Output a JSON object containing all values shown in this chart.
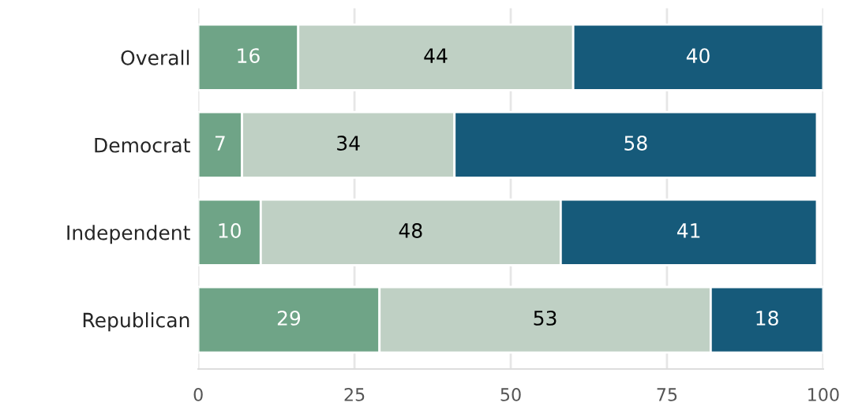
{
  "chart_data": {
    "type": "bar",
    "orientation": "horizontal",
    "stacked": true,
    "categories": [
      "Overall",
      "Democrat",
      "Independent",
      "Republican"
    ],
    "series": [
      {
        "color": "#6fa487",
        "values": [
          16,
          7,
          10,
          29
        ]
      },
      {
        "color": "#bfd0c4",
        "values": [
          44,
          34,
          48,
          53
        ]
      },
      {
        "color": "#165a7a",
        "values": [
          40,
          58,
          41,
          18
        ]
      }
    ],
    "xlim": [
      0,
      100
    ],
    "xticks": [
      0,
      25,
      50,
      75,
      100
    ],
    "grid": "x",
    "data_labels": true
  }
}
